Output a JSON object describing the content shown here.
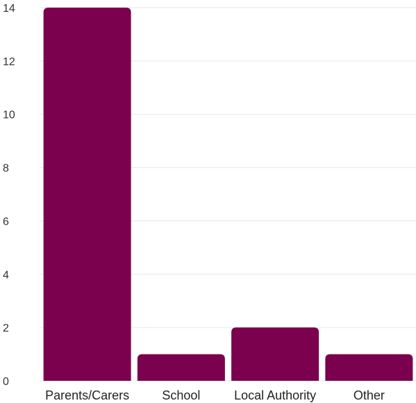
{
  "chart_data": {
    "type": "bar",
    "title": "",
    "xlabel": "",
    "ylabel": "",
    "categories": [
      "Parents/Carers",
      "School",
      "Local Authority",
      "Other"
    ],
    "values": [
      14,
      1,
      2,
      1
    ],
    "ylim": [
      0,
      14
    ],
    "yticks": [
      0,
      2,
      4,
      6,
      8,
      10,
      12,
      14
    ],
    "grid": true,
    "legend": "none",
    "colors": {
      "bar": "#7b004d",
      "grid": "#e6e6e6",
      "text": "#333333"
    }
  }
}
